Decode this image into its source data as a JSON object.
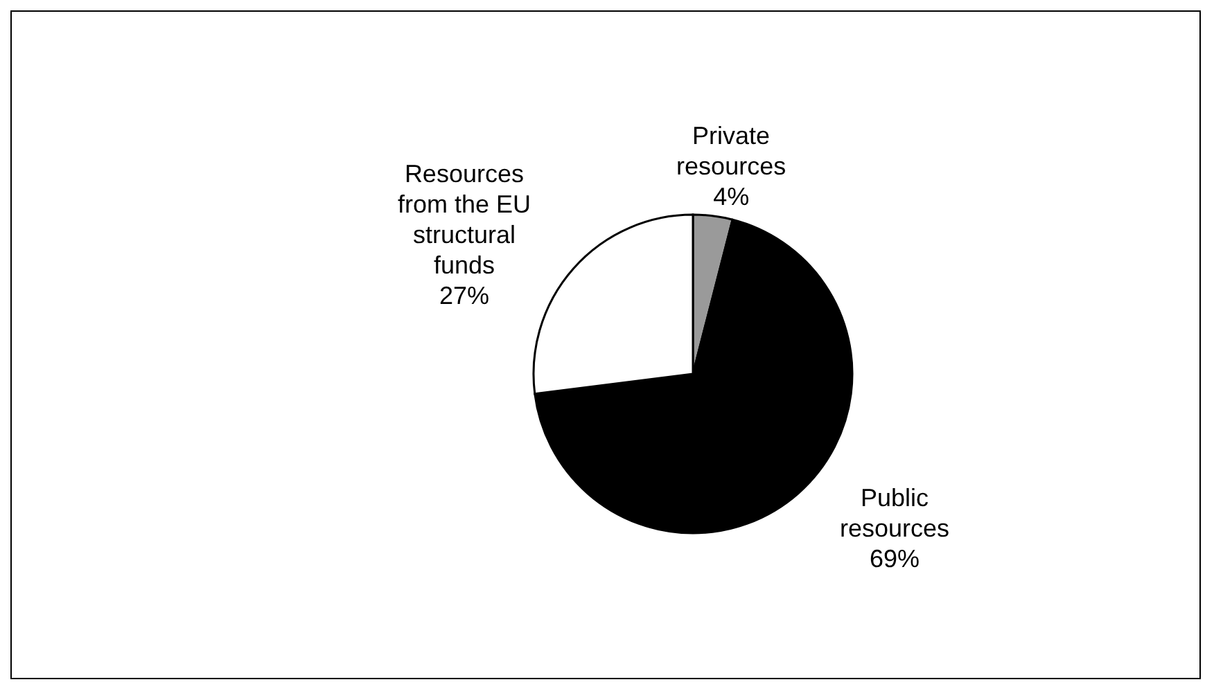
{
  "chart_data": {
    "type": "pie",
    "categories": [
      "Private resources",
      "Public resources",
      "Resources from the EU structural funds"
    ],
    "values": [
      4,
      69,
      27
    ],
    "colors": [
      "#9a9a9a",
      "#000000",
      "#ffffff"
    ],
    "value_labels": [
      "4%",
      "69%",
      "27%"
    ]
  }
}
